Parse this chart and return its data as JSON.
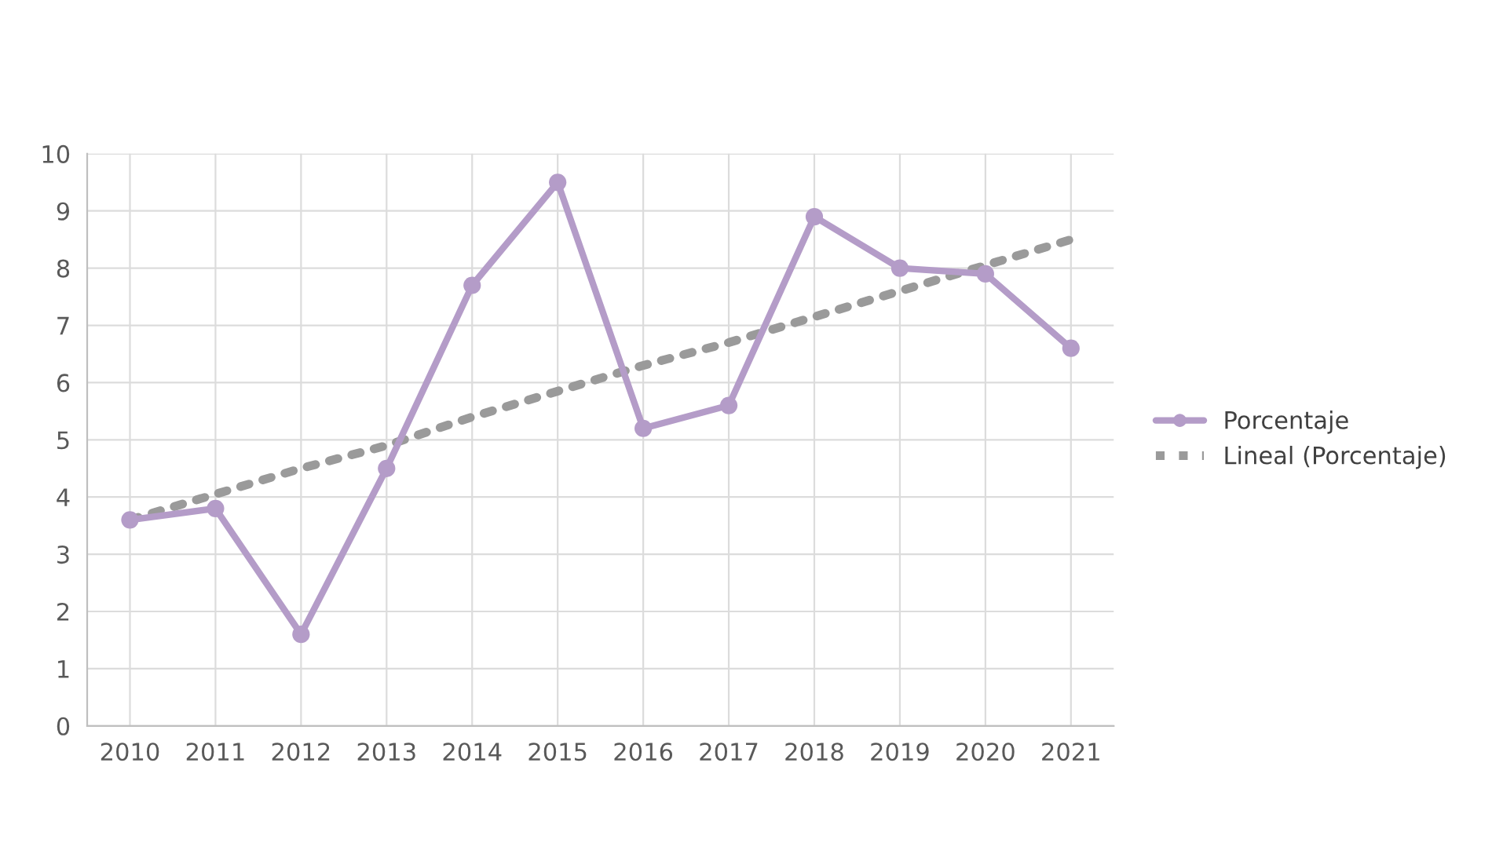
{
  "chart_data": {
    "type": "line",
    "categories": [
      "2010",
      "2011",
      "2012",
      "2013",
      "2014",
      "2015",
      "2016",
      "2017",
      "2018",
      "2019",
      "2020",
      "2021"
    ],
    "series": [
      {
        "name": "Porcentaje",
        "color": "#b49cc8",
        "marker": "circle",
        "line_style": "solid",
        "values": [
          3.6,
          3.8,
          1.6,
          4.5,
          7.7,
          9.5,
          5.2,
          5.6,
          8.9,
          8.0,
          7.9,
          6.6
        ]
      },
      {
        "name": "Lineal (Porcentaje)",
        "color": "#9a9a9a",
        "marker": "none",
        "line_style": "dotted",
        "values": [
          3.6,
          4.05,
          4.5,
          4.9,
          5.4,
          5.85,
          6.3,
          6.7,
          7.15,
          7.6,
          8.05,
          8.5
        ]
      }
    ],
    "ylim": [
      0,
      10
    ],
    "yticks": [
      0,
      1,
      2,
      3,
      4,
      5,
      6,
      7,
      8,
      9,
      10
    ],
    "grid": true,
    "legend": "right"
  }
}
